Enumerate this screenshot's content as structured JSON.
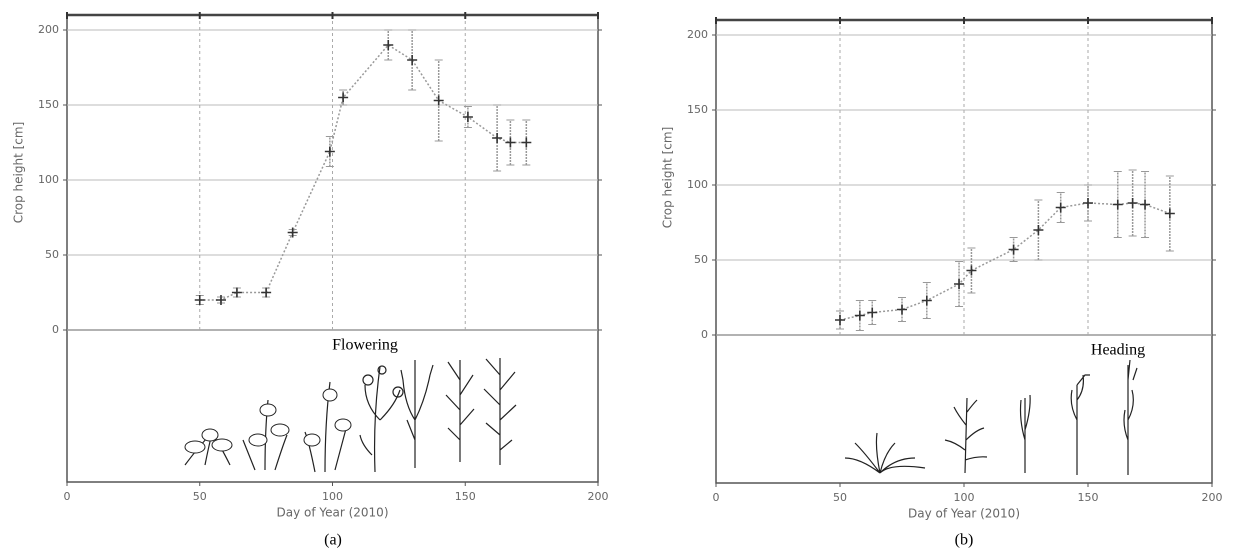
{
  "chart_data": [
    {
      "type": "line",
      "x_label": "Day of Year  (2010)",
      "y_label": "Crop height  [cm]",
      "xlim": [
        0,
        200
      ],
      "xticks": [
        0,
        50,
        100,
        150,
        200
      ],
      "ylim": [
        0,
        210
      ],
      "yticks": [
        0,
        50,
        100,
        150,
        200
      ],
      "grid": true,
      "x": [
        50,
        58,
        64,
        75,
        85,
        99,
        104,
        121,
        130,
        140,
        151,
        162,
        167,
        173
      ],
      "values": [
        20,
        20,
        25,
        25,
        65,
        119,
        155,
        190,
        180,
        153,
        142,
        128,
        125,
        125
      ],
      "errors": [
        3,
        2,
        3,
        3,
        2,
        10,
        5,
        10,
        20,
        27,
        7,
        22,
        15,
        15
      ],
      "annotation": "Flowering",
      "panel_label": "(a)"
    },
    {
      "type": "line",
      "x_label": "Day of Year  (2010)",
      "y_label": "Crop height  [cm]",
      "xlim": [
        0,
        200
      ],
      "xticks": [
        0,
        50,
        100,
        150,
        200
      ],
      "ylim": [
        0,
        210
      ],
      "yticks": [
        0,
        50,
        100,
        150,
        200
      ],
      "grid": true,
      "x": [
        50,
        58,
        63,
        75,
        85,
        98,
        103,
        120,
        130,
        139,
        150,
        162,
        168,
        173,
        183
      ],
      "values": [
        10,
        13,
        15,
        17,
        23,
        34,
        43,
        57,
        70,
        85,
        88,
        87,
        88,
        87,
        81
      ],
      "errors": [
        6,
        10,
        8,
        8,
        12,
        15,
        15,
        8,
        20,
        10,
        12,
        22,
        22,
        22,
        25
      ],
      "annotation": "Heading",
      "panel_label": "(b)"
    }
  ]
}
